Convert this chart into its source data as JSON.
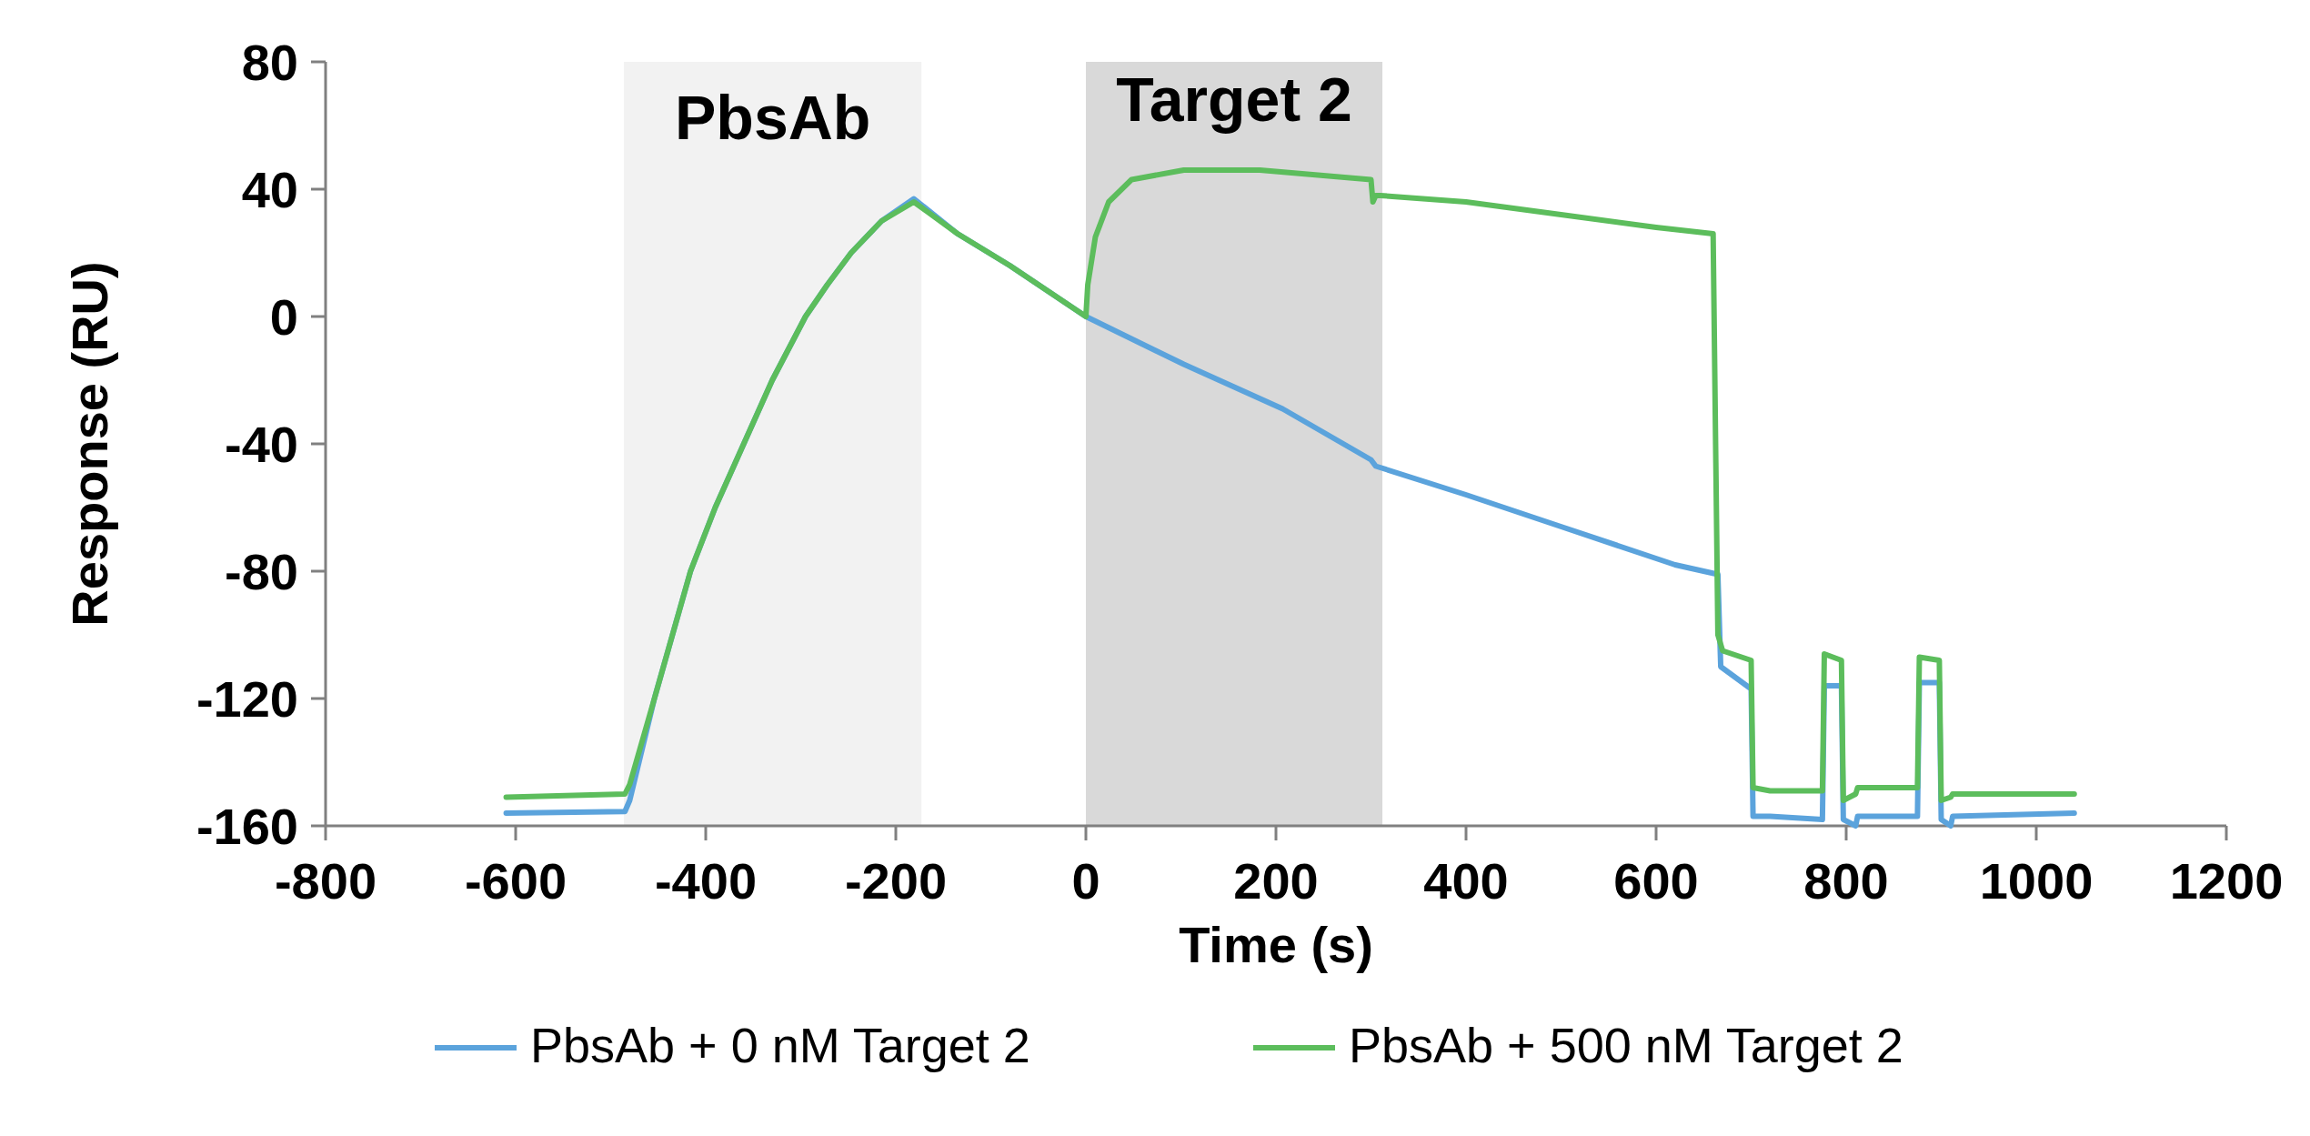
{
  "chart_data": {
    "type": "line",
    "xlabel": "Time (s)",
    "ylabel": "Response (RU)",
    "xlim": [
      -800,
      1200
    ],
    "xticks": [
      -800,
      -600,
      -400,
      -200,
      0,
      200,
      400,
      600,
      800,
      1000,
      1200
    ],
    "ylim": [
      -160,
      80
    ],
    "yticks": [
      -160,
      -120,
      -80,
      -40,
      0,
      40,
      80
    ],
    "grid": false,
    "legend": "bottom",
    "line_style": "solid",
    "bands": [
      {
        "axis": "x",
        "from": -486,
        "to": -173,
        "label": "PbsAb",
        "color": "#f2f2f2"
      },
      {
        "axis": "x",
        "from": 0,
        "to": 312,
        "label": "Target 2",
        "color": "#d9d9d9"
      }
    ],
    "series": [
      {
        "name": "PbsAb + 0 nM Target 2",
        "color": "#5ba3dc",
        "x": [
          -610,
          -485,
          -480,
          -454,
          -435,
          -416,
          -390,
          -360,
          -330,
          -295,
          -272,
          -247,
          -215,
          -181,
          -135,
          -80,
          0,
          103,
          207,
          300,
          305,
          400,
          500,
          600,
          620,
          665,
          668,
          700,
          702,
          720,
          775,
          777,
          795,
          797,
          810,
          812,
          875,
          877,
          898,
          900,
          910,
          912,
          1040
        ],
        "values": [
          -156,
          -155.5,
          -152,
          -120,
          -100,
          -80,
          -60,
          -40,
          -20,
          0,
          10,
          20,
          30,
          37,
          26,
          16,
          0,
          -15,
          -29,
          -45,
          -47,
          -56,
          -66,
          -76,
          -78,
          -81,
          -110,
          -117,
          -157,
          -157,
          -158,
          -116,
          -116,
          -158,
          -160,
          -157,
          -157,
          -115,
          -115,
          -158,
          -160,
          -157,
          -156
        ]
      },
      {
        "name": "PbsAb + 500 nM Target 2",
        "color": "#5cbd5c",
        "x": [
          -610,
          -485,
          -480,
          -454,
          -435,
          -416,
          -390,
          -360,
          -330,
          -295,
          -272,
          -247,
          -215,
          -181,
          -135,
          -80,
          0,
          2,
          10,
          24,
          48,
          103,
          183,
          300,
          302,
          305,
          310,
          400,
          500,
          600,
          660,
          665,
          670,
          700,
          702,
          720,
          775,
          777,
          795,
          797,
          810,
          812,
          875,
          877,
          898,
          900,
          910,
          912,
          1040
        ],
        "values": [
          -151,
          -150,
          -147,
          -120,
          -100,
          -80,
          -60,
          -40,
          -20,
          0,
          10,
          20,
          30,
          36,
          26,
          16,
          0,
          10,
          25,
          36,
          43,
          46,
          46,
          43,
          36,
          38,
          38,
          36,
          32,
          28,
          26,
          -100,
          -105,
          -108,
          -148,
          -149,
          -149,
          -106,
          -108,
          -152,
          -150,
          -148,
          -148,
          -107,
          -108,
          -152,
          -151,
          -150,
          -150
        ]
      }
    ]
  }
}
